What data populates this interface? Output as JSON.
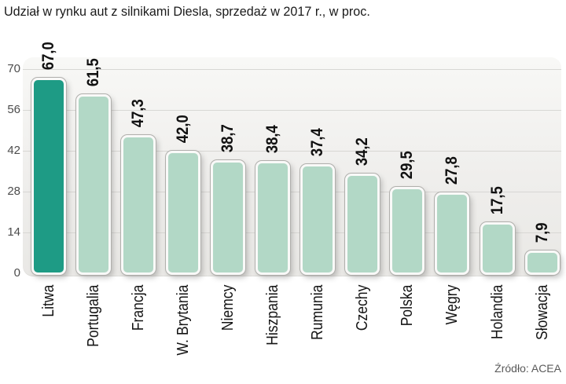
{
  "title": "Udział w rynku aut z silnikami Diesla, sprzedaż w 2017 r., w proc.",
  "source": "Źródło: ACEA",
  "chart_data": {
    "type": "bar",
    "title": "Udział w rynku aut z silnikami Diesla, sprzedaż w 2017 r., w proc.",
    "categories": [
      "Litwa",
      "Portugalia",
      "Francja",
      "W. Brytania",
      "Niemcy",
      "Hiszpania",
      "Rumunia",
      "Czechy",
      "Polska",
      "Węgry",
      "Holandia",
      "Słowacja"
    ],
    "values": [
      67.0,
      61.5,
      47.3,
      42.0,
      38.7,
      38.4,
      37.4,
      34.2,
      29.5,
      27.8,
      17.5,
      7.9
    ],
    "value_labels": [
      "67,0",
      "61,5",
      "47,3",
      "42,0",
      "38,7",
      "38,4",
      "37,4",
      "34,2",
      "29,5",
      "27,8",
      "17,5",
      "7,9"
    ],
    "xlabel": "",
    "ylabel": "",
    "ylim": [
      0,
      70
    ],
    "yticks": [
      0,
      14,
      28,
      42,
      56,
      70
    ],
    "grid": true,
    "legend": false,
    "highlight_index": 0,
    "colors": {
      "highlight_bar": "#1e9b85",
      "default_bar": "#b2d8c6",
      "bar_border": "#f9f9f8",
      "gridline": "#d8d7d4",
      "plot_background_top": "#f8f8f6",
      "plot_background_bottom": "#e9e8e5"
    },
    "source": "Źródło: ACEA"
  }
}
